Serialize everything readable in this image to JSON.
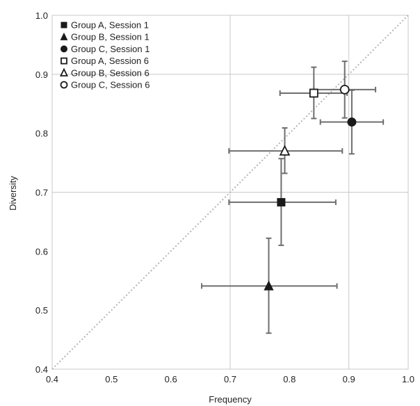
{
  "chart_data": {
    "type": "scatter",
    "title": "",
    "xlabel": "Frequency",
    "ylabel": "Diversity",
    "xlim": [
      0.4,
      1.0
    ],
    "ylim": [
      0.4,
      1.0
    ],
    "x_ticks": [
      "0.4",
      "0.5",
      "0.6",
      "0.7",
      "0.8",
      "0.9",
      "1.0"
    ],
    "y_ticks": [
      "0.4",
      "0.5",
      "0.6",
      "0.7",
      "0.8",
      "0.9",
      "1.0"
    ],
    "grid": "vertical and horizontal at 0.7 and 0.9 (axes frame)",
    "reference_line": "dotted diagonal y = x",
    "legend_position": "top-left",
    "series": [
      {
        "name": "Group A, Session 1",
        "marker": "square",
        "filled": true,
        "x": 0.786,
        "y": 0.683,
        "xerr": [
          0.698,
          0.878
        ],
        "yerr": [
          0.61,
          0.757
        ]
      },
      {
        "name": "Group B, Session 1",
        "marker": "triangle",
        "filled": true,
        "x": 0.765,
        "y": 0.541,
        "xerr": [
          0.652,
          0.88
        ],
        "yerr": [
          0.461,
          0.622
        ]
      },
      {
        "name": "Group C, Session 1",
        "marker": "circle",
        "filled": true,
        "x": 0.905,
        "y": 0.819,
        "xerr": [
          0.852,
          0.958
        ],
        "yerr": [
          0.765,
          0.873
        ]
      },
      {
        "name": "Group A, Session 6",
        "marker": "square",
        "filled": false,
        "x": 0.841,
        "y": 0.868,
        "xerr": [
          0.784,
          0.897
        ],
        "yerr": [
          0.825,
          0.912
        ]
      },
      {
        "name": "Group B, Session 6",
        "marker": "triangle",
        "filled": false,
        "x": 0.792,
        "y": 0.77,
        "xerr": [
          0.698,
          0.889
        ],
        "yerr": [
          0.732,
          0.809
        ]
      },
      {
        "name": "Group C, Session 6",
        "marker": "circle",
        "filled": false,
        "x": 0.893,
        "y": 0.874,
        "xerr": [
          0.841,
          0.945
        ],
        "yerr": [
          0.826,
          0.922
        ]
      }
    ],
    "colors": {
      "marker": "#1a1a1a",
      "errorbar": "#6e6e6e",
      "frame": "#c8c8c8",
      "diagonal": "#b4b4b4"
    }
  }
}
